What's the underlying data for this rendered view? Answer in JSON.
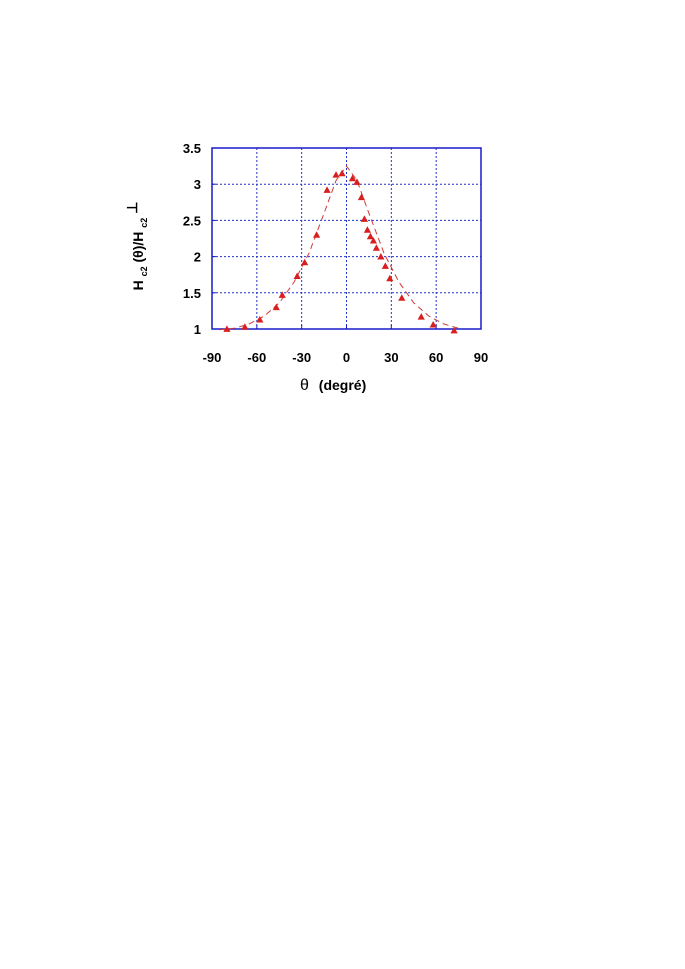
{
  "chart_data": {
    "type": "scatter",
    "title": "",
    "xlabel": {
      "symbol": "θ",
      "text": "(degré)"
    },
    "ylabel": {
      "main": "H",
      "sub1": "c2",
      "mid": "(θ)/H",
      "sub2": "c2",
      "sup": "⊥"
    },
    "xlim": [
      -90,
      90
    ],
    "ylim": [
      1,
      3.5
    ],
    "xticks": [
      -90,
      -60,
      -30,
      0,
      30,
      60,
      90
    ],
    "yticks": [
      1,
      1.5,
      2,
      2.5,
      3,
      3.5
    ],
    "ytick_labels": [
      "1",
      "1.5",
      "2",
      "2.5",
      "3",
      "3.5"
    ],
    "grid": true,
    "colors": {
      "frame": "#1a1acc",
      "grid": "#2233cc",
      "marker": "#d81e1e",
      "fit": "#cc3a3a"
    },
    "series": [
      {
        "marker": "triangle",
        "x": [
          -80,
          -68,
          -58,
          -47,
          -43,
          -33,
          -28,
          -20,
          -13,
          -7,
          -3,
          4,
          7,
          10,
          12,
          14,
          16,
          18,
          20,
          23,
          26,
          29,
          37,
          50,
          58,
          72
        ],
        "y": [
          1.0,
          1.03,
          1.13,
          1.3,
          1.47,
          1.73,
          1.92,
          2.3,
          2.92,
          3.13,
          3.15,
          3.08,
          3.03,
          2.82,
          2.52,
          2.37,
          2.28,
          2.22,
          2.12,
          2.0,
          1.87,
          1.7,
          1.43,
          1.17,
          1.06,
          0.98
        ]
      }
    ],
    "fit": {
      "style": "dashed",
      "x": [
        -85,
        -75,
        -65,
        -55,
        -45,
        -35,
        -25,
        -15,
        -7,
        0,
        7,
        15,
        25,
        35,
        45,
        55,
        65,
        75
      ],
      "y": [
        0.99,
        1.01,
        1.07,
        1.18,
        1.36,
        1.65,
        2.05,
        2.6,
        3.05,
        3.25,
        3.05,
        2.6,
        2.05,
        1.65,
        1.36,
        1.18,
        1.07,
        1.01
      ]
    }
  }
}
